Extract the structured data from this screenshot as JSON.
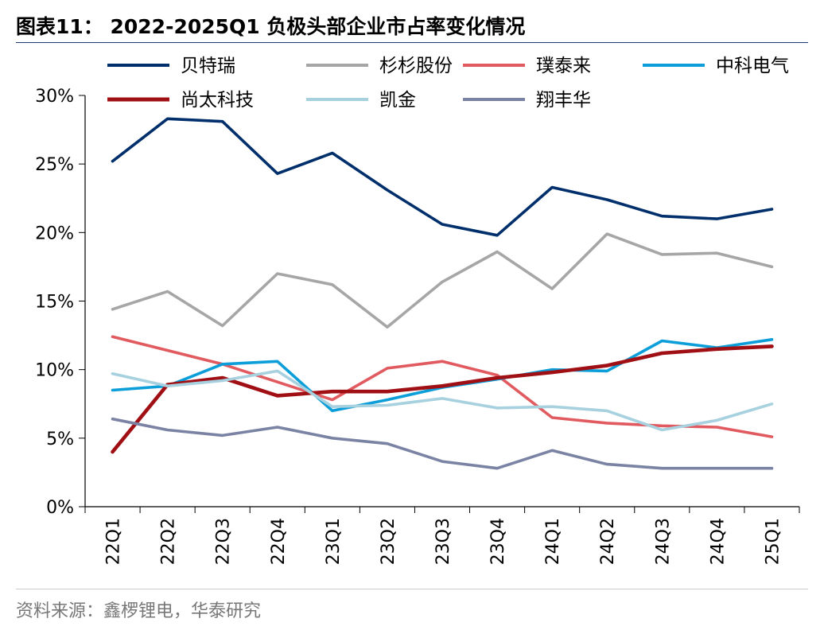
{
  "figure": {
    "title": "图表11： 2022-2025Q1 负极头部企业市占率变化情况",
    "source": "资料来源：鑫椤锂电，华泰研究"
  },
  "chart_data": {
    "type": "line",
    "categories": [
      "22Q1",
      "22Q2",
      "22Q3",
      "22Q4",
      "23Q1",
      "23Q2",
      "23Q3",
      "23Q4",
      "24Q1",
      "24Q2",
      "24Q3",
      "24Q4",
      "25Q1"
    ],
    "y_ticks": [
      "0%",
      "5%",
      "10%",
      "15%",
      "20%",
      "25%",
      "30%"
    ],
    "ylim": [
      0,
      30
    ],
    "y_unit": "%",
    "grid": false,
    "legend_position": "top",
    "series": [
      {
        "name": "贝特瑞",
        "color": "#002f6c",
        "values": [
          25.2,
          28.3,
          28.1,
          24.3,
          25.8,
          23.1,
          20.6,
          19.8,
          23.3,
          22.4,
          21.2,
          21.0,
          21.7
        ]
      },
      {
        "name": "杉杉股份",
        "color": "#a6a6a6",
        "values": [
          14.4,
          15.7,
          13.2,
          17.0,
          16.2,
          13.1,
          16.4,
          18.6,
          15.9,
          19.9,
          18.4,
          18.5,
          17.5
        ]
      },
      {
        "name": "璞泰来",
        "color": "#e05a5f",
        "values": [
          12.4,
          11.4,
          10.4,
          9.1,
          7.8,
          10.1,
          10.6,
          9.6,
          6.5,
          6.1,
          5.9,
          5.8,
          5.1
        ]
      },
      {
        "name": "中科电气",
        "color": "#0c9ed8",
        "values": [
          8.5,
          8.8,
          10.4,
          10.6,
          7.0,
          7.8,
          8.7,
          9.3,
          10.0,
          9.9,
          12.1,
          11.6,
          12.2
        ]
      },
      {
        "name": "尚太科技",
        "color": "#a00f14",
        "values": [
          4.0,
          8.9,
          9.4,
          8.1,
          8.4,
          8.4,
          8.8,
          9.4,
          9.8,
          10.3,
          11.2,
          11.5,
          11.7
        ]
      },
      {
        "name": "凯金",
        "color": "#a7d1df",
        "values": [
          9.7,
          8.8,
          9.2,
          9.9,
          7.3,
          7.4,
          7.9,
          7.2,
          7.3,
          7.0,
          5.6,
          6.3,
          7.5
        ]
      },
      {
        "name": "翔丰华",
        "color": "#7a83a3",
        "values": [
          6.4,
          5.6,
          5.2,
          5.8,
          5.0,
          4.6,
          3.3,
          2.8,
          4.1,
          3.1,
          2.8,
          2.8,
          2.8
        ]
      }
    ]
  }
}
